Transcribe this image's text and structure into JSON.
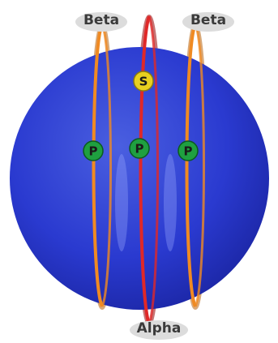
{
  "rings": {
    "left": "Beta",
    "right": "Beta",
    "bottom": "Alpha"
  },
  "orbitals": [
    "S",
    "P",
    "P",
    "P"
  ]
}
